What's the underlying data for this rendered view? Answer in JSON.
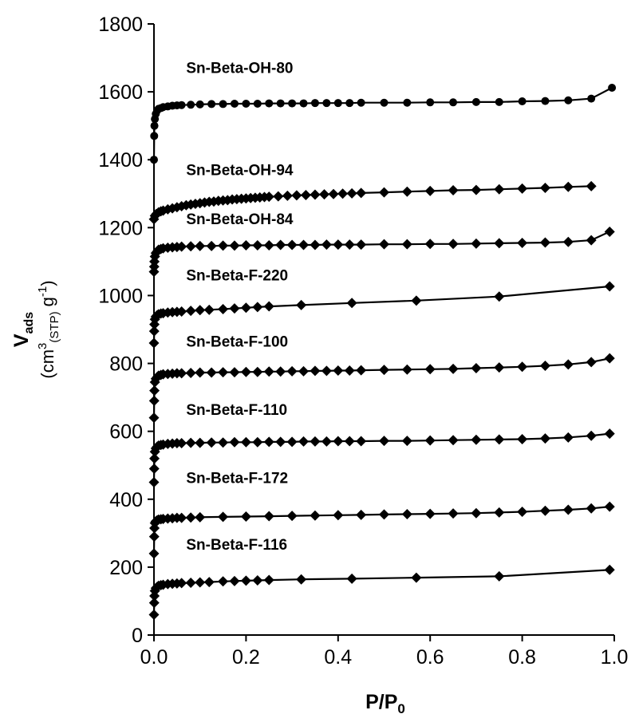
{
  "chart_data": {
    "type": "line",
    "title": "",
    "xlabel": {
      "base": "P/P",
      "subscript": "0"
    },
    "ylabel": {
      "main": "V",
      "main_sub": "ads",
      "unit_open": "(cm",
      "unit_sup1": "3",
      "unit_sub": "(STP)",
      "unit_mid": " g",
      "unit_sup2": "-1",
      "unit_close": ")"
    },
    "xlim": [
      0,
      1.0
    ],
    "ylim": [
      0,
      1800
    ],
    "xticks": [
      "0.0",
      "0.2",
      "0.4",
      "0.6",
      "0.8",
      "1.0"
    ],
    "xtick_values": [
      0,
      0.2,
      0.4,
      0.6,
      0.8,
      1.0
    ],
    "yticks": [
      "0",
      "200",
      "400",
      "600",
      "800",
      "1000",
      "1200",
      "1400",
      "1600",
      "1800"
    ],
    "ytick_values": [
      0,
      200,
      400,
      600,
      800,
      1000,
      1200,
      1400,
      1600,
      1800
    ],
    "grid": false,
    "legend": "none",
    "series": [
      {
        "name": "Sn-Beta-OH-80",
        "marker": "circle",
        "label_at": [
          0.07,
          1655
        ],
        "x": [
          0.0,
          0.0005,
          0.001,
          0.002,
          0.004,
          0.007,
          0.01,
          0.015,
          0.02,
          0.03,
          0.04,
          0.05,
          0.06,
          0.08,
          0.1,
          0.125,
          0.15,
          0.175,
          0.2,
          0.225,
          0.25,
          0.275,
          0.3,
          0.325,
          0.35,
          0.375,
          0.4,
          0.425,
          0.45,
          0.5,
          0.55,
          0.6,
          0.65,
          0.7,
          0.75,
          0.8,
          0.85,
          0.9,
          0.95,
          0.995
        ],
        "y": [
          1400,
          1470,
          1500,
          1520,
          1535,
          1545,
          1550,
          1552,
          1555,
          1557,
          1559,
          1560,
          1561,
          1562,
          1563,
          1564,
          1564,
          1565,
          1565,
          1565,
          1566,
          1566,
          1566,
          1566,
          1567,
          1567,
          1567,
          1567,
          1568,
          1568,
          1568,
          1569,
          1569,
          1570,
          1570,
          1572,
          1573,
          1575,
          1580,
          1612
        ]
      },
      {
        "name": "Sn-Beta-OH-94",
        "marker": "diamond",
        "label_at": [
          0.07,
          1355
        ],
        "x": [
          0.0,
          0.002,
          0.005,
          0.01,
          0.015,
          0.02,
          0.03,
          0.04,
          0.05,
          0.06,
          0.07,
          0.08,
          0.09,
          0.1,
          0.11,
          0.12,
          0.13,
          0.14,
          0.15,
          0.16,
          0.17,
          0.18,
          0.19,
          0.2,
          0.21,
          0.22,
          0.23,
          0.24,
          0.25,
          0.27,
          0.29,
          0.31,
          0.33,
          0.35,
          0.37,
          0.39,
          0.41,
          0.43,
          0.45,
          0.5,
          0.55,
          0.6,
          0.65,
          0.7,
          0.75,
          0.8,
          0.85,
          0.9,
          0.95
        ],
        "y": [
          1225,
          1235,
          1240,
          1245,
          1248,
          1250,
          1254,
          1257,
          1260,
          1263,
          1266,
          1268,
          1270,
          1272,
          1274,
          1276,
          1277,
          1279,
          1280,
          1281,
          1283,
          1284,
          1285,
          1286,
          1287,
          1288,
          1289,
          1290,
          1291,
          1292,
          1294,
          1295,
          1296,
          1297,
          1298,
          1299,
          1300,
          1301,
          1302,
          1304,
          1306,
          1308,
          1310,
          1311,
          1313,
          1315,
          1317,
          1320,
          1322
        ]
      },
      {
        "name": "Sn-Beta-OH-84",
        "marker": "diamond",
        "label_at": [
          0.07,
          1210
        ],
        "x": [
          0.0,
          0.0005,
          0.001,
          0.002,
          0.004,
          0.007,
          0.01,
          0.015,
          0.02,
          0.03,
          0.04,
          0.05,
          0.06,
          0.08,
          0.1,
          0.125,
          0.15,
          0.175,
          0.2,
          0.225,
          0.25,
          0.275,
          0.3,
          0.325,
          0.35,
          0.375,
          0.4,
          0.425,
          0.45,
          0.5,
          0.55,
          0.6,
          0.65,
          0.7,
          0.75,
          0.8,
          0.85,
          0.9,
          0.95,
          0.99
        ],
        "y": [
          1070,
          1085,
          1100,
          1115,
          1125,
          1130,
          1135,
          1137,
          1139,
          1141,
          1142,
          1143,
          1144,
          1145,
          1146,
          1146,
          1147,
          1147,
          1148,
          1148,
          1148,
          1149,
          1149,
          1149,
          1149,
          1150,
          1150,
          1150,
          1150,
          1151,
          1151,
          1152,
          1152,
          1153,
          1154,
          1155,
          1156,
          1158,
          1163,
          1188
        ]
      },
      {
        "name": "Sn-Beta-F-220",
        "marker": "diamond",
        "label_at": [
          0.07,
          1045
        ],
        "x": [
          0.0,
          0.0005,
          0.001,
          0.002,
          0.004,
          0.007,
          0.01,
          0.015,
          0.02,
          0.03,
          0.04,
          0.05,
          0.06,
          0.08,
          0.1,
          0.12,
          0.15,
          0.175,
          0.2,
          0.225,
          0.25,
          0.32,
          0.43,
          0.57,
          0.75,
          0.99
        ],
        "y": [
          860,
          895,
          915,
          930,
          938,
          942,
          945,
          947,
          948,
          950,
          951,
          952,
          953,
          955,
          957,
          958,
          960,
          962,
          964,
          966,
          968,
          972,
          978,
          985,
          997,
          1027
        ]
      },
      {
        "name": "Sn-Beta-F-100",
        "marker": "diamond",
        "label_at": [
          0.07,
          850
        ],
        "x": [
          0.0,
          0.0005,
          0.001,
          0.002,
          0.004,
          0.007,
          0.01,
          0.015,
          0.02,
          0.03,
          0.04,
          0.05,
          0.06,
          0.08,
          0.1,
          0.125,
          0.15,
          0.175,
          0.2,
          0.225,
          0.25,
          0.275,
          0.3,
          0.325,
          0.35,
          0.375,
          0.4,
          0.425,
          0.45,
          0.5,
          0.55,
          0.6,
          0.65,
          0.7,
          0.75,
          0.8,
          0.85,
          0.9,
          0.95,
          0.99
        ],
        "y": [
          640,
          690,
          720,
          745,
          755,
          760,
          764,
          766,
          768,
          769,
          770,
          771,
          771,
          772,
          773,
          773,
          774,
          774,
          775,
          775,
          776,
          776,
          777,
          777,
          778,
          778,
          779,
          779,
          780,
          781,
          782,
          783,
          784,
          786,
          788,
          790,
          793,
          797,
          804,
          815
        ]
      },
      {
        "name": "Sn-Beta-F-110",
        "marker": "diamond",
        "label_at": [
          0.07,
          648
        ],
        "x": [
          0.0,
          0.0005,
          0.001,
          0.002,
          0.004,
          0.007,
          0.01,
          0.015,
          0.02,
          0.03,
          0.04,
          0.05,
          0.06,
          0.08,
          0.1,
          0.125,
          0.15,
          0.175,
          0.2,
          0.225,
          0.25,
          0.275,
          0.3,
          0.325,
          0.35,
          0.375,
          0.4,
          0.425,
          0.45,
          0.5,
          0.55,
          0.6,
          0.65,
          0.7,
          0.75,
          0.8,
          0.85,
          0.9,
          0.95,
          0.99
        ],
        "y": [
          450,
          490,
          520,
          540,
          550,
          555,
          558,
          560,
          561,
          563,
          564,
          565,
          565,
          566,
          566,
          567,
          567,
          568,
          568,
          568,
          569,
          569,
          569,
          570,
          570,
          570,
          571,
          571,
          571,
          572,
          572,
          573,
          574,
          575,
          576,
          577,
          579,
          582,
          587,
          593
        ]
      },
      {
        "name": "Sn-Beta-F-172",
        "marker": "diamond",
        "label_at": [
          0.07,
          448
        ],
        "x": [
          0.0,
          0.0005,
          0.001,
          0.002,
          0.004,
          0.007,
          0.01,
          0.015,
          0.02,
          0.03,
          0.04,
          0.05,
          0.06,
          0.08,
          0.1,
          0.15,
          0.2,
          0.25,
          0.3,
          0.35,
          0.4,
          0.45,
          0.5,
          0.55,
          0.6,
          0.65,
          0.7,
          0.75,
          0.8,
          0.85,
          0.9,
          0.95,
          0.99
        ],
        "y": [
          240,
          290,
          315,
          330,
          335,
          338,
          340,
          341,
          342,
          343,
          344,
          345,
          345,
          346,
          347,
          348,
          349,
          350,
          351,
          352,
          353,
          354,
          355,
          356,
          357,
          358,
          359,
          361,
          363,
          366,
          369,
          373,
          378
        ]
      },
      {
        "name": "Sn-Beta-F-116",
        "marker": "diamond",
        "label_at": [
          0.07,
          252
        ],
        "x": [
          0.0,
          0.0005,
          0.001,
          0.002,
          0.004,
          0.007,
          0.01,
          0.015,
          0.02,
          0.03,
          0.04,
          0.05,
          0.06,
          0.08,
          0.1,
          0.12,
          0.15,
          0.175,
          0.2,
          0.225,
          0.25,
          0.32,
          0.43,
          0.57,
          0.75,
          0.99
        ],
        "y": [
          60,
          95,
          115,
          130,
          138,
          142,
          145,
          147,
          148,
          150,
          151,
          152,
          153,
          154,
          155,
          156,
          158,
          159,
          160,
          161,
          162,
          164,
          166,
          169,
          173,
          192
        ]
      }
    ]
  }
}
